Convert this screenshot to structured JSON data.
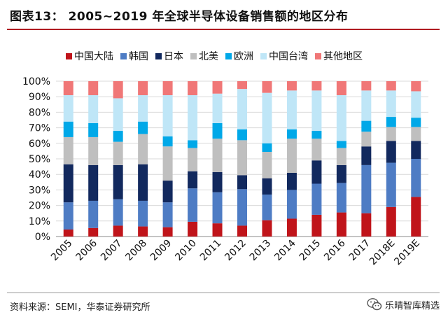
{
  "title": "图表13：  2005~2019 年全球半导体设备销售额的地区分布",
  "source": "资料来源：SEMI，华泰证券研究所",
  "watermark": "乐晴智库精选",
  "chart_data": {
    "type": "bar",
    "stacked": true,
    "percent": true,
    "categories": [
      "2005",
      "2006",
      "2007",
      "2008",
      "2009",
      "2010",
      "2011",
      "2012",
      "2013",
      "2014",
      "2015",
      "2016",
      "2017",
      "2018E",
      "2019E"
    ],
    "yticks": [
      "0%",
      "10%",
      "20%",
      "30%",
      "40%",
      "50%",
      "60%",
      "70%",
      "80%",
      "90%",
      "100%"
    ],
    "ylim": [
      0,
      100
    ],
    "legend_position": "top",
    "series": [
      {
        "name": "中国大陆",
        "color": "#c0141a",
        "values": [
          4.5,
          5.5,
          7,
          6.5,
          6,
          9.5,
          8.5,
          7,
          10.5,
          11.5,
          14,
          15.5,
          15,
          19,
          25.5
        ]
      },
      {
        "name": "韩国",
        "color": "#4e7cc4",
        "values": [
          17.5,
          17.5,
          17,
          16.5,
          16,
          21.5,
          20,
          23.5,
          16.5,
          18.5,
          20,
          19,
          31,
          28.5,
          24.5
        ]
      },
      {
        "name": "日本",
        "color": "#12295e",
        "values": [
          24.5,
          23,
          22,
          23.5,
          14,
          11,
          13,
          9,
          10.5,
          11,
          15,
          11.5,
          12,
          14,
          11.5
        ]
      },
      {
        "name": "北美",
        "color": "#bfbfbf",
        "values": [
          17.5,
          18,
          15,
          19.5,
          22,
          15,
          21.5,
          22.5,
          17,
          22,
          14,
          11,
          9.5,
          9,
          9
        ]
      },
      {
        "name": "欧洲",
        "color": "#00a8e8",
        "values": [
          10,
          9,
          7,
          8,
          6.5,
          5,
          10,
          7,
          5.5,
          6,
          5,
          4.5,
          7,
          6.5,
          6
        ]
      },
      {
        "name": "中国台湾",
        "color": "#bfe6f7",
        "values": [
          17,
          18,
          21,
          17,
          26.5,
          29,
          19,
          26,
          32.5,
          25,
          26,
          29.5,
          19.5,
          17,
          17
        ]
      },
      {
        "name": "其他地区",
        "color": "#f07777",
        "values": [
          9,
          9,
          11,
          9,
          9,
          9,
          8,
          5,
          7.5,
          6,
          6,
          9,
          6,
          6,
          6.5
        ]
      }
    ]
  }
}
